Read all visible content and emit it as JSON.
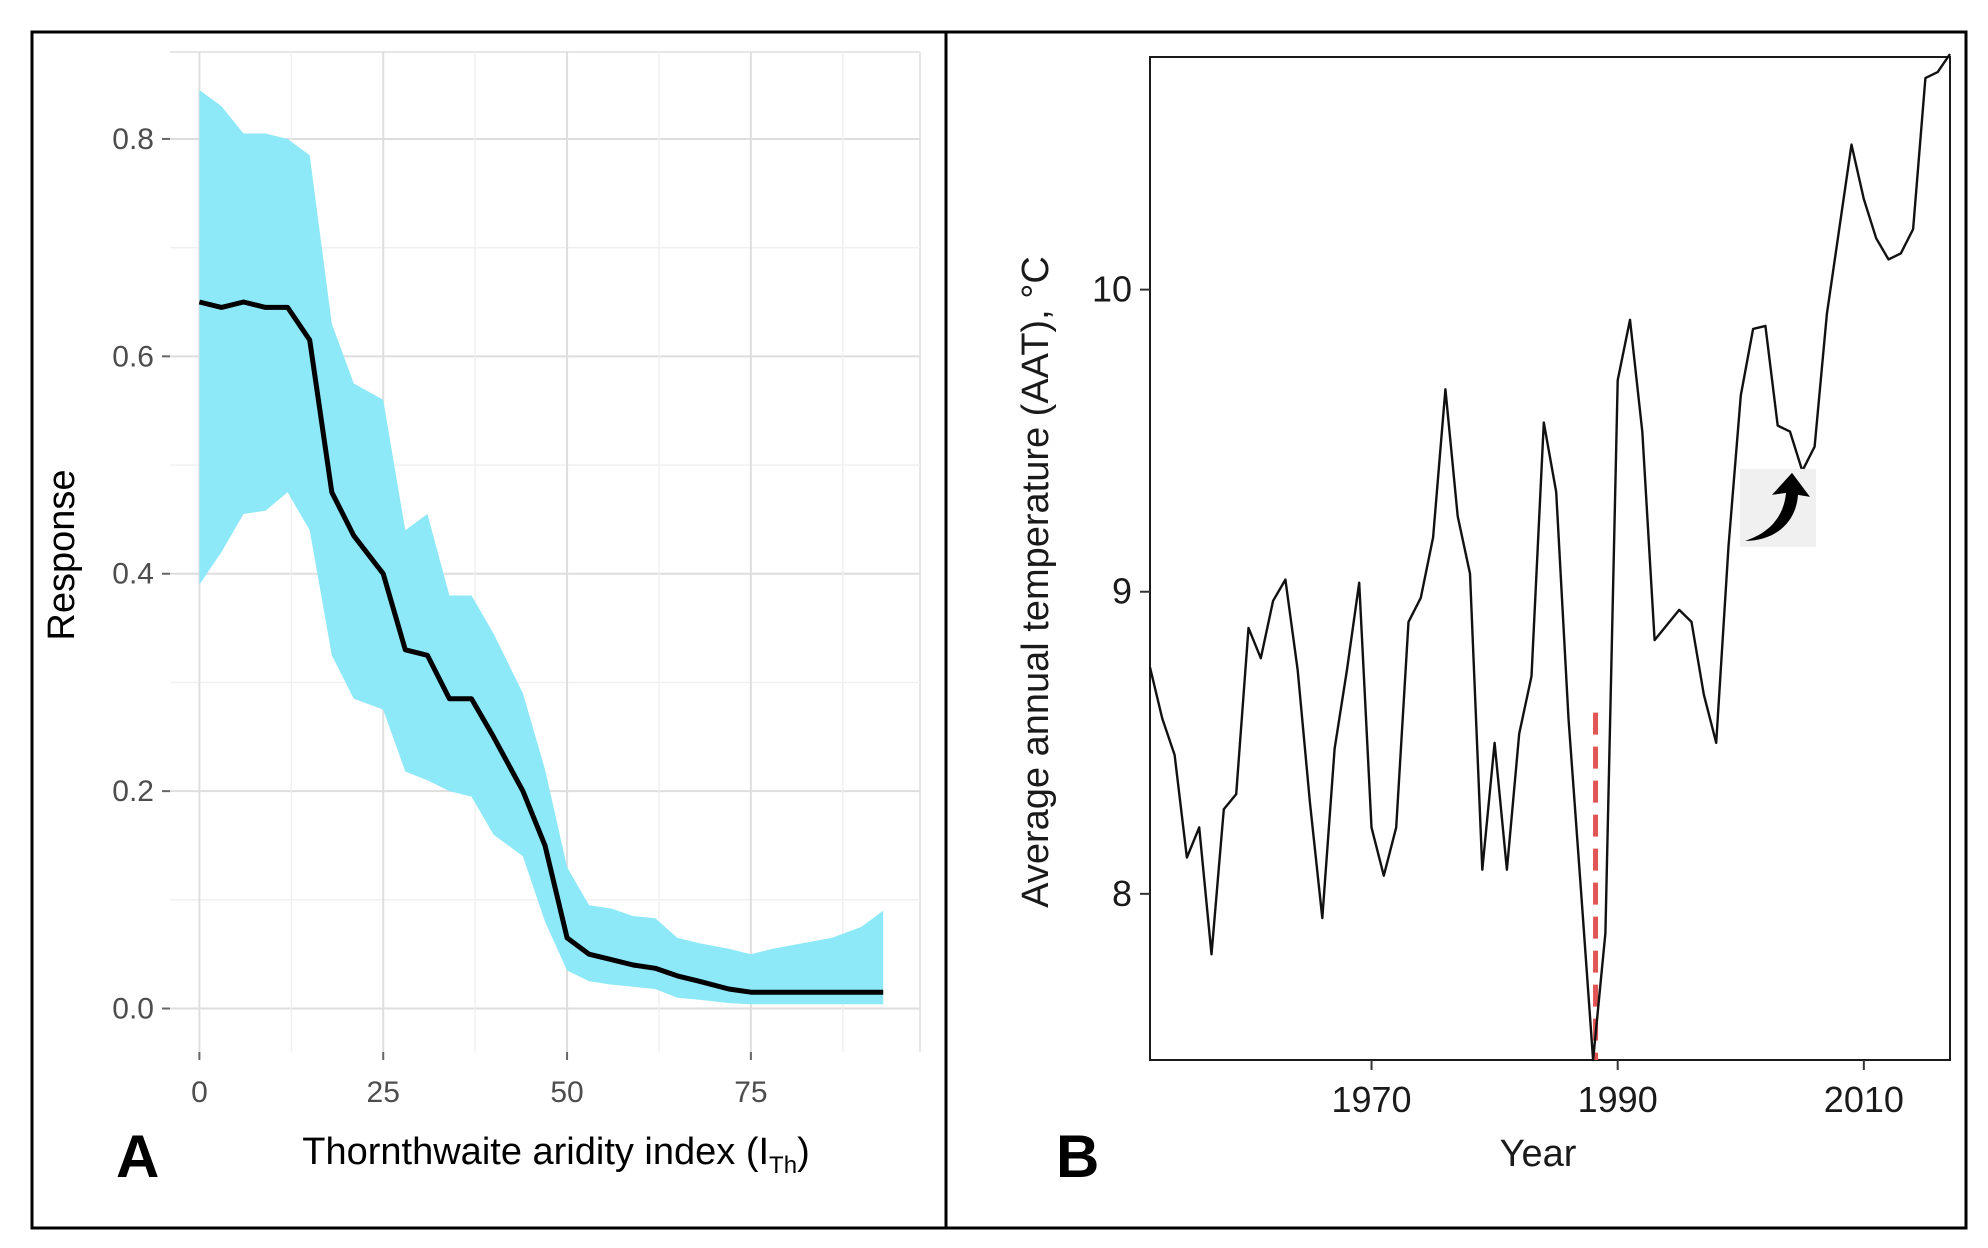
{
  "chart_data": [
    {
      "panel": "A",
      "type": "line",
      "title": "",
      "xlabel_main": "Thornthwaite aridity index (I",
      "xlabel_sub": "Th",
      "xlabel_close": ")",
      "ylabel": "Response",
      "xlim": [
        -4,
        98
      ],
      "ylim": [
        -0.04,
        0.88
      ],
      "xticks": [
        0,
        25,
        50,
        75
      ],
      "xtick_labels": [
        "0",
        "25",
        "50",
        "75"
      ],
      "yticks": [
        0.0,
        0.2,
        0.4,
        0.6,
        0.8
      ],
      "ytick_labels": [
        "0.0",
        "0.2",
        "0.4",
        "0.6",
        "0.8"
      ],
      "grid": true,
      "band_color": "#8de8f8",
      "line_color": "#000000",
      "series": [
        {
          "name": "Response",
          "x": [
            0,
            3,
            6,
            9,
            12,
            15,
            18,
            21,
            25,
            28,
            31,
            34,
            37,
            40,
            44,
            47,
            50,
            53,
            56,
            59,
            62,
            65,
            68,
            72,
            75,
            78,
            82,
            86,
            90,
            93
          ],
          "y": [
            0.65,
            0.645,
            0.65,
            0.645,
            0.645,
            0.615,
            0.475,
            0.435,
            0.4,
            0.33,
            0.325,
            0.285,
            0.285,
            0.25,
            0.2,
            0.15,
            0.065,
            0.05,
            0.045,
            0.04,
            0.037,
            0.03,
            0.025,
            0.018,
            0.015,
            0.015,
            0.015,
            0.015,
            0.015,
            0.015
          ],
          "lower": [
            0.39,
            0.42,
            0.455,
            0.458,
            0.475,
            0.44,
            0.325,
            0.285,
            0.275,
            0.218,
            0.21,
            0.2,
            0.195,
            0.16,
            0.14,
            0.08,
            0.035,
            0.025,
            0.022,
            0.02,
            0.018,
            0.01,
            0.008,
            0.005,
            0.004,
            0.004,
            0.004,
            0.004,
            0.004,
            0.004
          ],
          "upper": [
            0.845,
            0.83,
            0.805,
            0.805,
            0.8,
            0.785,
            0.63,
            0.575,
            0.56,
            0.44,
            0.455,
            0.38,
            0.38,
            0.345,
            0.29,
            0.22,
            0.13,
            0.095,
            0.092,
            0.085,
            0.083,
            0.065,
            0.06,
            0.055,
            0.05,
            0.055,
            0.06,
            0.065,
            0.075,
            0.09
          ]
        }
      ]
    },
    {
      "panel": "B",
      "type": "line",
      "title": "",
      "xlabel": "Year",
      "ylabel": "Average annual temperature (AAT), °C",
      "xlim": [
        1952,
        2017
      ],
      "ylim": [
        7.45,
        10.77
      ],
      "xticks": [
        1970,
        1990,
        2010
      ],
      "xtick_labels": [
        "1970",
        "1990",
        "2010"
      ],
      "yticks": [
        8,
        9,
        10
      ],
      "ytick_labels": [
        "8",
        "9",
        "10"
      ],
      "grid": false,
      "line_color": "#111111",
      "vline": {
        "x": 1988.2,
        "y_top": 8.6,
        "color": "#e25555"
      },
      "arrow_target": {
        "x": 2004,
        "y": 9.4
      },
      "series": [
        {
          "name": "AAT",
          "x": [
            1952,
            1953,
            1954,
            1955,
            1956,
            1957,
            1958,
            1959,
            1960,
            1961,
            1962,
            1963,
            1964,
            1965,
            1966,
            1967,
            1968,
            1969,
            1970,
            1971,
            1972,
            1973,
            1974,
            1975,
            1976,
            1977,
            1978,
            1979,
            1980,
            1981,
            1982,
            1983,
            1984,
            1985,
            1986,
            1987,
            1988,
            1989,
            1990,
            1991,
            1992,
            1993,
            1994,
            1995,
            1996,
            1997,
            1998,
            1999,
            2000,
            2001,
            2002,
            2003,
            2004,
            2005,
            2006,
            2007,
            2008,
            2009,
            2010,
            2011,
            2012,
            2013,
            2014,
            2015,
            2016,
            2017
          ],
          "y": [
            8.75,
            8.58,
            8.46,
            8.12,
            8.22,
            7.8,
            8.28,
            8.33,
            8.88,
            8.78,
            8.97,
            9.04,
            8.74,
            8.3,
            7.92,
            8.48,
            8.74,
            9.03,
            8.22,
            8.06,
            8.22,
            8.9,
            8.98,
            9.18,
            9.67,
            9.25,
            9.06,
            8.08,
            8.5,
            8.08,
            8.53,
            8.72,
            9.56,
            9.33,
            8.58,
            8.02,
            7.45,
            7.87,
            9.7,
            9.9,
            9.53,
            8.84,
            8.89,
            8.94,
            8.9,
            8.66,
            8.5,
            9.15,
            9.65,
            9.87,
            9.88,
            9.55,
            9.53,
            9.4,
            9.48,
            9.92,
            10.2,
            10.48,
            10.3,
            10.17,
            10.1,
            10.12,
            10.2,
            10.7,
            10.72,
            10.78
          ]
        }
      ]
    }
  ]
}
